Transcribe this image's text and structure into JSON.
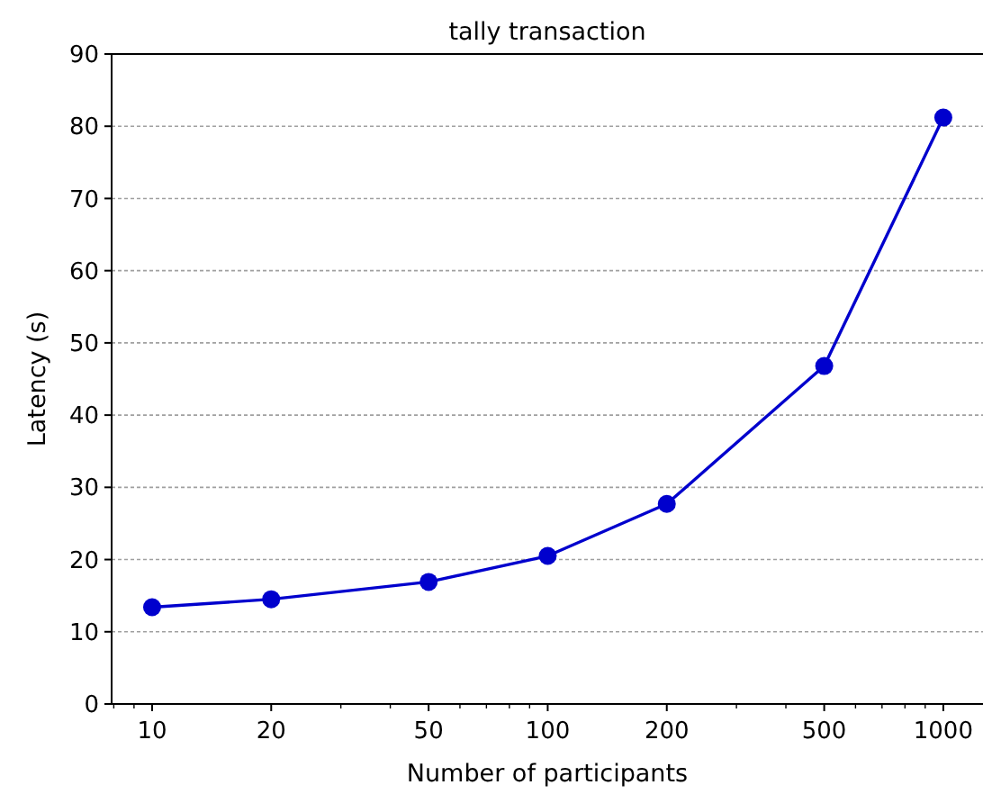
{
  "chart_data": {
    "type": "line",
    "title": "tally transaction",
    "xlabel": "Number of participants",
    "ylabel": "Latency (s)",
    "x": [
      10,
      20,
      50,
      100,
      200,
      500,
      1000
    ],
    "values": [
      13.4,
      14.5,
      16.9,
      20.5,
      27.7,
      46.8,
      81.2
    ],
    "color": "#0000cd",
    "xlim": [
      7.9,
      1260
    ],
    "ylim": [
      0,
      90
    ],
    "xticks": [
      {
        "value": 8,
        "label": null
      },
      {
        "value": 9,
        "label": null
      },
      10,
      20,
      {
        "value": 30,
        "label": null
      },
      {
        "value": 40,
        "label": null
      },
      50,
      {
        "value": 60,
        "label": null
      },
      {
        "value": 70,
        "label": null
      },
      {
        "value": 80,
        "label": null
      },
      {
        "value": 90,
        "label": null
      },
      100,
      200,
      {
        "value": 300,
        "label": null
      },
      {
        "value": 400,
        "label": null
      },
      500,
      {
        "value": 600,
        "label": null
      },
      {
        "value": 700,
        "label": null
      },
      {
        "value": 800,
        "label": null
      },
      {
        "value": 900,
        "label": null
      },
      1000
    ],
    "yticks": [
      0,
      10,
      20,
      30,
      40,
      50,
      60,
      70,
      80,
      90
    ],
    "log": "x",
    "grid": "y",
    "marker": "circle"
  }
}
